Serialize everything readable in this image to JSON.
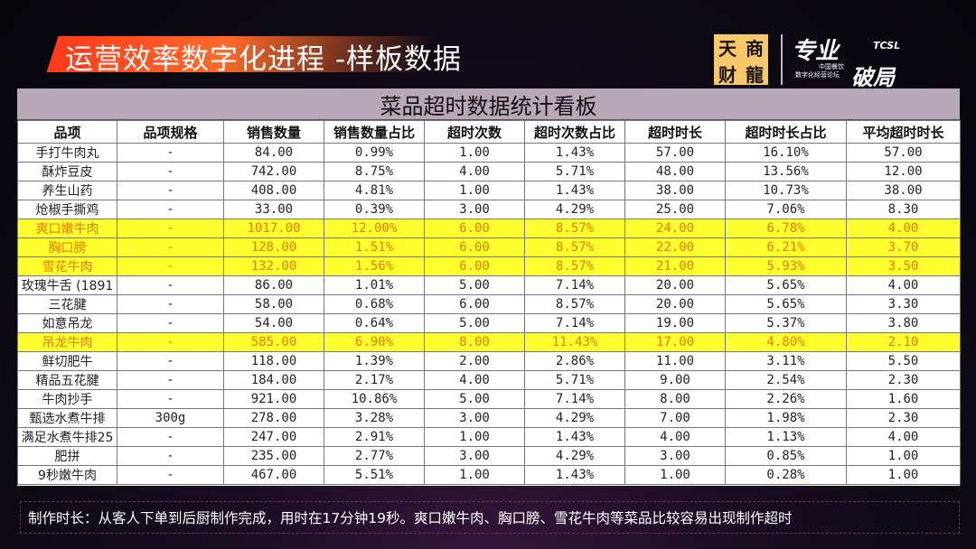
{
  "header": {
    "title": "运营效率数字化进程 -样板数据",
    "logo1_chars": [
      "天",
      "商",
      "财",
      "龍"
    ],
    "logo2": {
      "big": "专业",
      "tcsl": "TCSL",
      "small1": "中国餐饮",
      "small2": "数字化经营论坛",
      "big2": "破局"
    }
  },
  "board": {
    "title": "菜品超时数据统计看板",
    "columns": [
      "品项",
      "品项规格",
      "销售数量",
      "销售数量占比",
      "超时次数",
      "超时次数占比",
      "超时时长",
      "超时时长占比",
      "平均超时时长"
    ],
    "rows": [
      {
        "cells": [
          "手打牛肉丸",
          "-",
          "84.00",
          "0.99%",
          "1.00",
          "1.43%",
          "57.00",
          "16.10%",
          "57.00"
        ],
        "highlight": false
      },
      {
        "cells": [
          "酥炸豆皮",
          "-",
          "742.00",
          "8.75%",
          "4.00",
          "5.71%",
          "48.00",
          "13.56%",
          "12.00"
        ],
        "highlight": false
      },
      {
        "cells": [
          "养生山药",
          "-",
          "408.00",
          "4.81%",
          "1.00",
          "1.43%",
          "38.00",
          "10.73%",
          "38.00"
        ],
        "highlight": false
      },
      {
        "cells": [
          "炝椒手撕鸡",
          "-",
          "33.00",
          "0.39%",
          "3.00",
          "4.29%",
          "25.00",
          "7.06%",
          "8.30"
        ],
        "highlight": false
      },
      {
        "cells": [
          "爽口嫩牛肉",
          "-",
          "1017.00",
          "12.00%",
          "6.00",
          "8.57%",
          "24.00",
          "6.78%",
          "4.00"
        ],
        "highlight": true
      },
      {
        "cells": [
          "胸口膀",
          "-",
          "128.00",
          "1.51%",
          "6.00",
          "8.57%",
          "22.00",
          "6.21%",
          "3.70"
        ],
        "highlight": true
      },
      {
        "cells": [
          "雪花牛肉",
          "-",
          "132.00",
          "1.56%",
          "6.00",
          "8.57%",
          "21.00",
          "5.93%",
          "3.50"
        ],
        "highlight": true
      },
      {
        "cells": [
          "玫瑰牛舌 (1891",
          "-",
          "86.00",
          "1.01%",
          "5.00",
          "7.14%",
          "20.00",
          "5.65%",
          "4.00"
        ],
        "highlight": false
      },
      {
        "cells": [
          "三花腱",
          "-",
          "58.00",
          "0.68%",
          "6.00",
          "8.57%",
          "20.00",
          "5.65%",
          "3.30"
        ],
        "highlight": false
      },
      {
        "cells": [
          "如意吊龙",
          "-",
          "54.00",
          "0.64%",
          "5.00",
          "7.14%",
          "19.00",
          "5.37%",
          "3.80"
        ],
        "highlight": false
      },
      {
        "cells": [
          "吊龙牛肉",
          "-",
          "585.00",
          "6.90%",
          "8.00",
          "11.43%",
          "17.00",
          "4.80%",
          "2.10"
        ],
        "highlight": true
      },
      {
        "cells": [
          "鲜切肥牛",
          "-",
          "118.00",
          "1.39%",
          "2.00",
          "2.86%",
          "11.00",
          "3.11%",
          "5.50"
        ],
        "highlight": false
      },
      {
        "cells": [
          "精品五花腱",
          "-",
          "184.00",
          "2.17%",
          "4.00",
          "5.71%",
          "9.00",
          "2.54%",
          "2.30"
        ],
        "highlight": false
      },
      {
        "cells": [
          "牛肉抄手",
          "-",
          "921.00",
          "10.86%",
          "5.00",
          "7.14%",
          "8.00",
          "2.26%",
          "1.60"
        ],
        "highlight": false
      },
      {
        "cells": [
          "甄选水煮牛排",
          "300g",
          "278.00",
          "3.28%",
          "3.00",
          "4.29%",
          "7.00",
          "1.98%",
          "2.30"
        ],
        "highlight": false
      },
      {
        "cells": [
          "满足水煮牛排25",
          "-",
          "247.00",
          "2.91%",
          "1.00",
          "1.43%",
          "4.00",
          "1.13%",
          "4.00"
        ],
        "highlight": false
      },
      {
        "cells": [
          "肥拼",
          "-",
          "235.00",
          "2.77%",
          "3.00",
          "4.29%",
          "3.00",
          "0.85%",
          "1.00"
        ],
        "highlight": false
      },
      {
        "cells": [
          "9秒嫩牛肉",
          "-",
          "467.00",
          "5.51%",
          "1.00",
          "1.43%",
          "1.00",
          "0.28%",
          "1.00"
        ],
        "highlight": false
      }
    ]
  },
  "footer": {
    "note": "制作时长：从客人下单到后厨制作完成，用时在17分钟19秒。爽口嫩牛肉、胸口膀、雪花牛肉等菜品比较容易出现制作超时"
  },
  "colors": {
    "highlight_bg": "#ffff2e",
    "highlight_text": "#e87b00",
    "title_accent": "#ff4a1f",
    "board_header": "#b8a7b6"
  }
}
